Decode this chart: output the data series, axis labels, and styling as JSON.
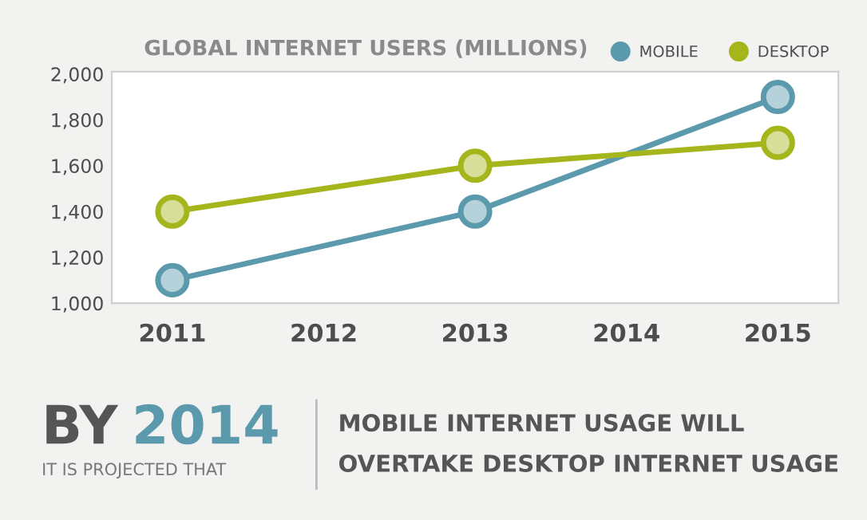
{
  "chart_data": {
    "type": "line",
    "title": "GLOBAL INTERNET USERS (MILLIONS)",
    "series": [
      {
        "name": "MOBILE",
        "color": "#5b9aad",
        "x": [
          2011,
          2013,
          2015
        ],
        "values": [
          1100,
          1400,
          1900
        ]
      },
      {
        "name": "DESKTOP",
        "color": "#a5b51c",
        "x": [
          2011,
          2013,
          2015
        ],
        "values": [
          1400,
          1600,
          1700
        ]
      }
    ],
    "xlim": [
      2010.6,
      2015.4
    ],
    "xticks": [
      2011,
      2012,
      2013,
      2014,
      2015
    ],
    "ylim": [
      1000,
      2010
    ],
    "yticks": [
      {
        "value": 1000,
        "label": "1,000"
      },
      {
        "value": 1200,
        "label": "1,200"
      },
      {
        "value": 1400,
        "label": "1,400"
      },
      {
        "value": 1600,
        "label": "1,600"
      },
      {
        "value": 1800,
        "label": "1,800"
      },
      {
        "value": 2000,
        "label": "2,000"
      }
    ],
    "marker": "circle",
    "line_style": "solid",
    "grid": false,
    "legend": "top right",
    "annotations": [
      "BY",
      "2014",
      "IT IS PROJECTED THAT",
      "MOBILE INTERNET USAGE WILL",
      "OVERTAKE DESKTOP INTERNET USAGE"
    ]
  }
}
